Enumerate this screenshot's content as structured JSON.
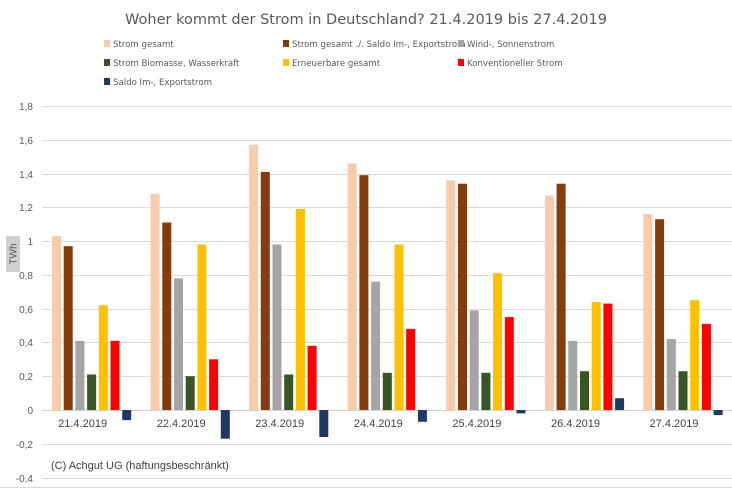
{
  "chart_data": {
    "type": "bar",
    "title": "Woher kommt der Strom in Deutschland? 21.4.2019 bis 27.4.2019",
    "xlabel": "",
    "ylabel": "TWh",
    "ylim": [
      -0.4,
      1.8
    ],
    "yticks": [
      -0.4,
      -0.2,
      0,
      0.2,
      0.4,
      0.6,
      0.8,
      1,
      1.2,
      1.4,
      1.6,
      1.8
    ],
    "ytick_labels": [
      "-0,4",
      "-0,2",
      "0",
      "0,2",
      "0,4",
      "0,6",
      "0,8",
      "1",
      "1,2",
      "1,4",
      "1,6",
      "1,8"
    ],
    "grid": true,
    "legend_position": "top",
    "categories": [
      "21.4.2019",
      "22.4.2019",
      "23.4.2019",
      "24.4.2019",
      "25.4.2019",
      "26.4.2019",
      "27.4.2019"
    ],
    "series": [
      {
        "name": "Strom gesamt",
        "color": "#F8CBAD",
        "values": [
          1.03,
          1.28,
          1.57,
          1.46,
          1.36,
          1.27,
          1.16
        ]
      },
      {
        "name": "Strom gesamt ./. Saldo Im-, Exportstrom",
        "color": "#843C0C",
        "values": [
          0.97,
          1.11,
          1.41,
          1.39,
          1.34,
          1.34,
          1.13
        ]
      },
      {
        "name": "Wind-, Sonnenstrom",
        "color": "#A5A5A5",
        "values": [
          0.41,
          0.78,
          0.98,
          0.76,
          0.59,
          0.41,
          0.42
        ]
      },
      {
        "name": "Strom Biomasse, Wasserkraft",
        "color": "#375623",
        "values": [
          0.21,
          0.2,
          0.21,
          0.22,
          0.22,
          0.23,
          0.23
        ]
      },
      {
        "name": "Erneuerbare gesamt",
        "color": "#FFC000",
        "values": [
          0.62,
          0.98,
          1.19,
          0.98,
          0.81,
          0.64,
          0.65
        ]
      },
      {
        "name": "Konventioneller Strom",
        "color": "#FF0000",
        "values": [
          0.41,
          0.3,
          0.38,
          0.48,
          0.55,
          0.63,
          0.51
        ]
      },
      {
        "name": "Saldo Im-, Exportstrom",
        "color": "#203864",
        "values": [
          -0.06,
          -0.17,
          -0.16,
          -0.07,
          -0.02,
          0.07,
          -0.03
        ]
      }
    ],
    "annotation": "(C) Achgut UG (haftungsbeschränkt)"
  }
}
